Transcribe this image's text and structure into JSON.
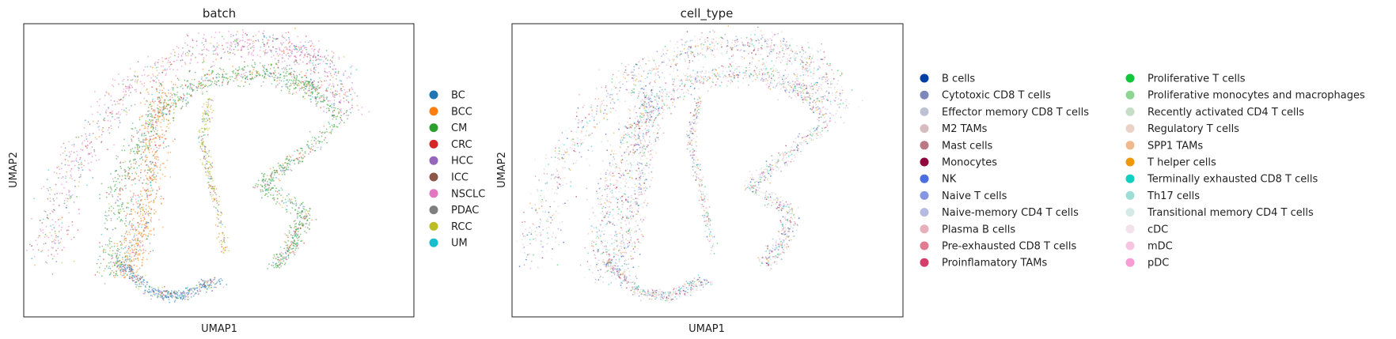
{
  "chart_data": [
    {
      "type": "scatter",
      "title": "batch",
      "xlabel": "UMAP1",
      "ylabel": "UMAP2",
      "grid": false,
      "ticks": false,
      "legend_position": "right",
      "legend_columns": 1,
      "series": [
        {
          "name": "BC",
          "color": "#1f77b4"
        },
        {
          "name": "BCC",
          "color": "#ff7f0e"
        },
        {
          "name": "CM",
          "color": "#2ca02c"
        },
        {
          "name": "CRC",
          "color": "#d62728"
        },
        {
          "name": "HCC",
          "color": "#9467bd"
        },
        {
          "name": "ICC",
          "color": "#8c564b"
        },
        {
          "name": "NSCLC",
          "color": "#e377c2"
        },
        {
          "name": "PDAC",
          "color": "#7f7f7f"
        },
        {
          "name": "RCC",
          "color": "#bcbd22"
        },
        {
          "name": "UM",
          "color": "#17becf"
        }
      ]
    },
    {
      "type": "scatter",
      "title": "cell_type",
      "xlabel": "UMAP1",
      "ylabel": "UMAP2",
      "grid": false,
      "ticks": false,
      "legend_position": "right",
      "legend_columns": 2,
      "series": [
        {
          "name": "B cells",
          "color": "#023fa5"
        },
        {
          "name": "Cytotoxic CD8 T cells",
          "color": "#7d87b9"
        },
        {
          "name": "Effector memory CD8 T cells",
          "color": "#bec1d4"
        },
        {
          "name": "M2 TAMs",
          "color": "#d6bcc0"
        },
        {
          "name": "Mast cells",
          "color": "#bb7784"
        },
        {
          "name": "Monocytes",
          "color": "#8e063b"
        },
        {
          "name": "NK",
          "color": "#4a6fe3"
        },
        {
          "name": "Naive T cells",
          "color": "#8595e1"
        },
        {
          "name": "Naive-memory CD4 T cells",
          "color": "#b5bbe3"
        },
        {
          "name": "Plasma B cells",
          "color": "#e6afb9"
        },
        {
          "name": "Pre-exhausted CD8 T cells",
          "color": "#e07b91"
        },
        {
          "name": "Proinflamatory TAMs",
          "color": "#d33f6a"
        },
        {
          "name": "Proliferative T cells",
          "color": "#11c638"
        },
        {
          "name": "Proliferative monocytes and macrophages",
          "color": "#8dd593"
        },
        {
          "name": "Recently activated CD4 T cells",
          "color": "#c6dec7"
        },
        {
          "name": "Regulatory T cells",
          "color": "#ead3c6"
        },
        {
          "name": "SPP1 TAMs",
          "color": "#f0b98d"
        },
        {
          "name": "T helper cells",
          "color": "#ef9708"
        },
        {
          "name": "Terminally exhausted CD8 T cells",
          "color": "#0fcfc0"
        },
        {
          "name": "Th17 cells",
          "color": "#9cded6"
        },
        {
          "name": "Transitional memory CD4 T cells",
          "color": "#d5eae7"
        },
        {
          "name": "cDC",
          "color": "#f3e1eb"
        },
        {
          "name": "mDC",
          "color": "#f6c4e1"
        },
        {
          "name": "pDC",
          "color": "#f79cd4"
        }
      ]
    }
  ]
}
